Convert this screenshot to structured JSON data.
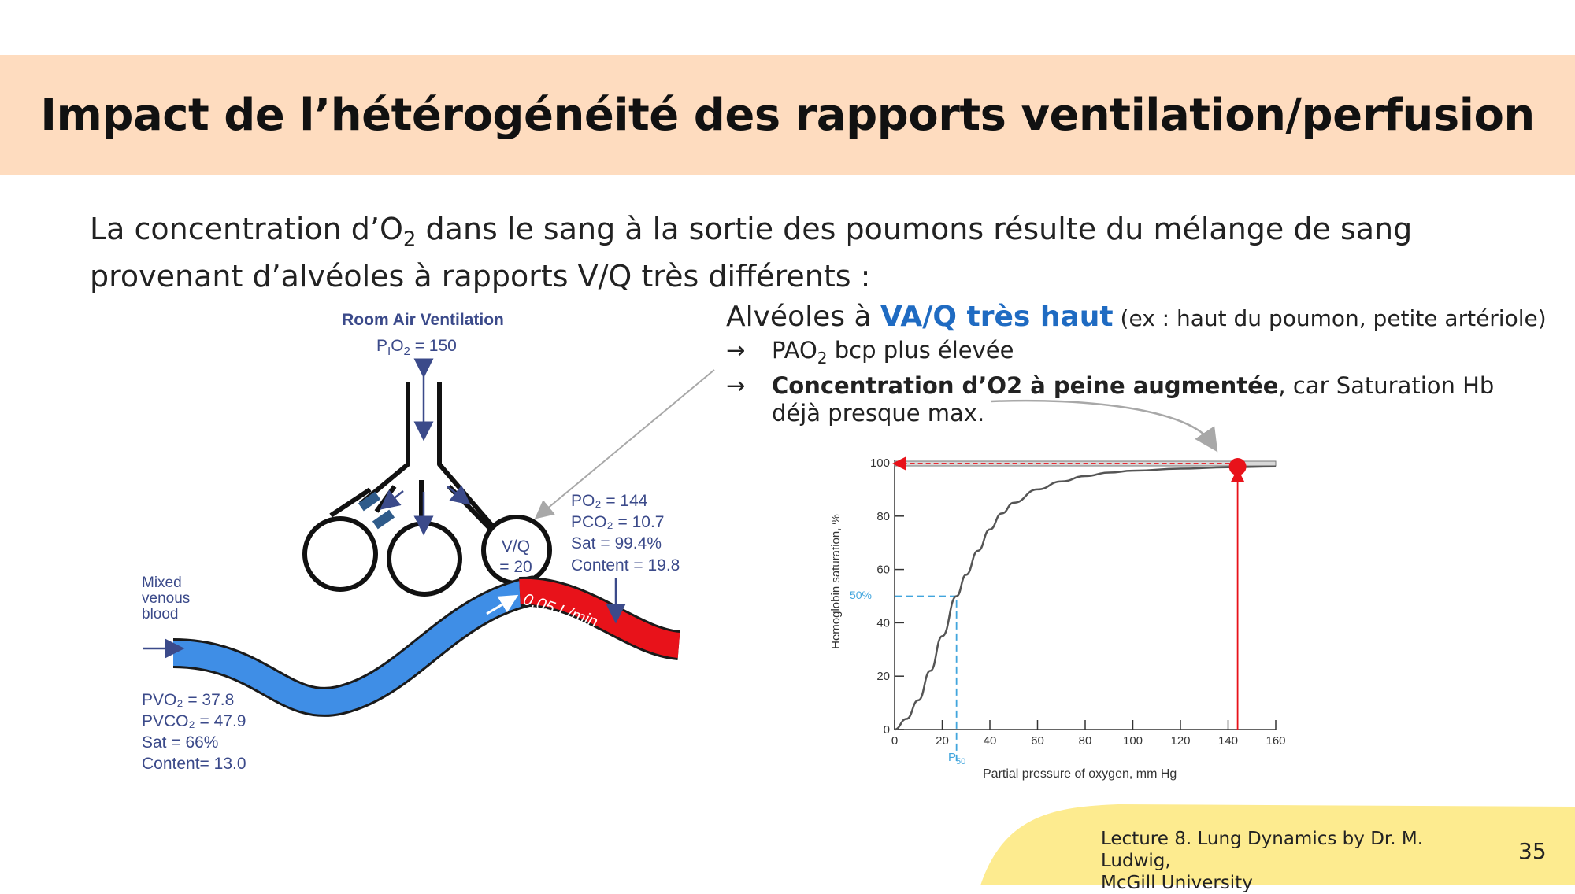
{
  "title": "Impact de l’hétérogénéité des rapports ventilation/perfusion",
  "intro": {
    "part1": "La concentration d’O",
    "sub": "2",
    "part2": " dans le sang à la sortie des poumons résulte du mélange de sang provenant d’alvéoles à rapports V/Q très différents :"
  },
  "alveoles": {
    "prefix": "Alvéoles à ",
    "highlight": "VA/Q très haut",
    "note": " (ex : haut du poumon, petite artériole)",
    "bullet_symbol": "→",
    "bullet1_a": "PAO",
    "bullet1_sub": "2",
    "bullet1_b": " bcp plus élevée",
    "bullet2_bold": "Concentration d’O2 à peine augmentée",
    "bullet2_rest": ", car Saturation Hb",
    "bullet2_cont": "déjà presque max."
  },
  "diagram": {
    "title": "Room Air Ventilation",
    "pio2_a": "P",
    "pio2_sub": "I",
    "pio2_b": "O",
    "pio2_sub2": "2",
    "pio2_c": " = 150",
    "vq_line1": "V/Q",
    "vq_line2": "= 20",
    "po2": "PO₂ = 144",
    "pco2": "PCO₂ = 10.7",
    "sat": "Sat = 99.4%",
    "content": "Content = 19.8",
    "mixed_line1": "Mixed",
    "mixed_line2": "venous",
    "mixed_line3": "blood",
    "flow": "0.05 L/min",
    "pvo2": "PVO₂ = 37.8",
    "pvco2": "PVCO₂ = 47.9",
    "sat_v": "Sat = 66%",
    "content_v": "Content= 13.0",
    "colors": {
      "venous": "#3f8ee6",
      "arterial": "#e8121a",
      "label_blue": "#3b4a8a"
    }
  },
  "chart_data": {
    "type": "line",
    "title": "",
    "xlabel": "Partial pressure of oxygen, mm Hg",
    "ylabel": "Hemoglobin saturation, %",
    "xlim": [
      0,
      160
    ],
    "ylim": [
      0,
      100
    ],
    "xticks": [
      "0",
      "20",
      "40",
      "60",
      "80",
      "100",
      "120",
      "140",
      "160"
    ],
    "yticks": [
      "0",
      "20",
      "40",
      "60",
      "80",
      "100"
    ],
    "p50_y_label": "50%",
    "p50_x_label": "P",
    "p50_x_sub": "50",
    "series": [
      {
        "x": [
          0,
          5,
          10,
          15,
          20,
          26,
          30,
          35,
          40,
          45,
          50,
          60,
          70,
          80,
          90,
          100,
          120,
          140,
          160
        ],
        "values": [
          0,
          4,
          11,
          22,
          35,
          50,
          58,
          67,
          75,
          81,
          85,
          90,
          93,
          95,
          96.3,
          97,
          97.8,
          98.3,
          98.6
        ]
      }
    ],
    "p50_point": {
      "x": 26,
      "y": 50
    },
    "highlight_point": {
      "x": 144,
      "y": 99.4
    },
    "colors": {
      "curve": "#555555",
      "p50": "#41a5dd",
      "highlight": "#e8121a"
    }
  },
  "footer": {
    "line1": "Lecture 8. Lung Dynamics by Dr. M. Ludwig,",
    "line2": "McGill University",
    "page": "35",
    "color": "#fdeb8f"
  }
}
